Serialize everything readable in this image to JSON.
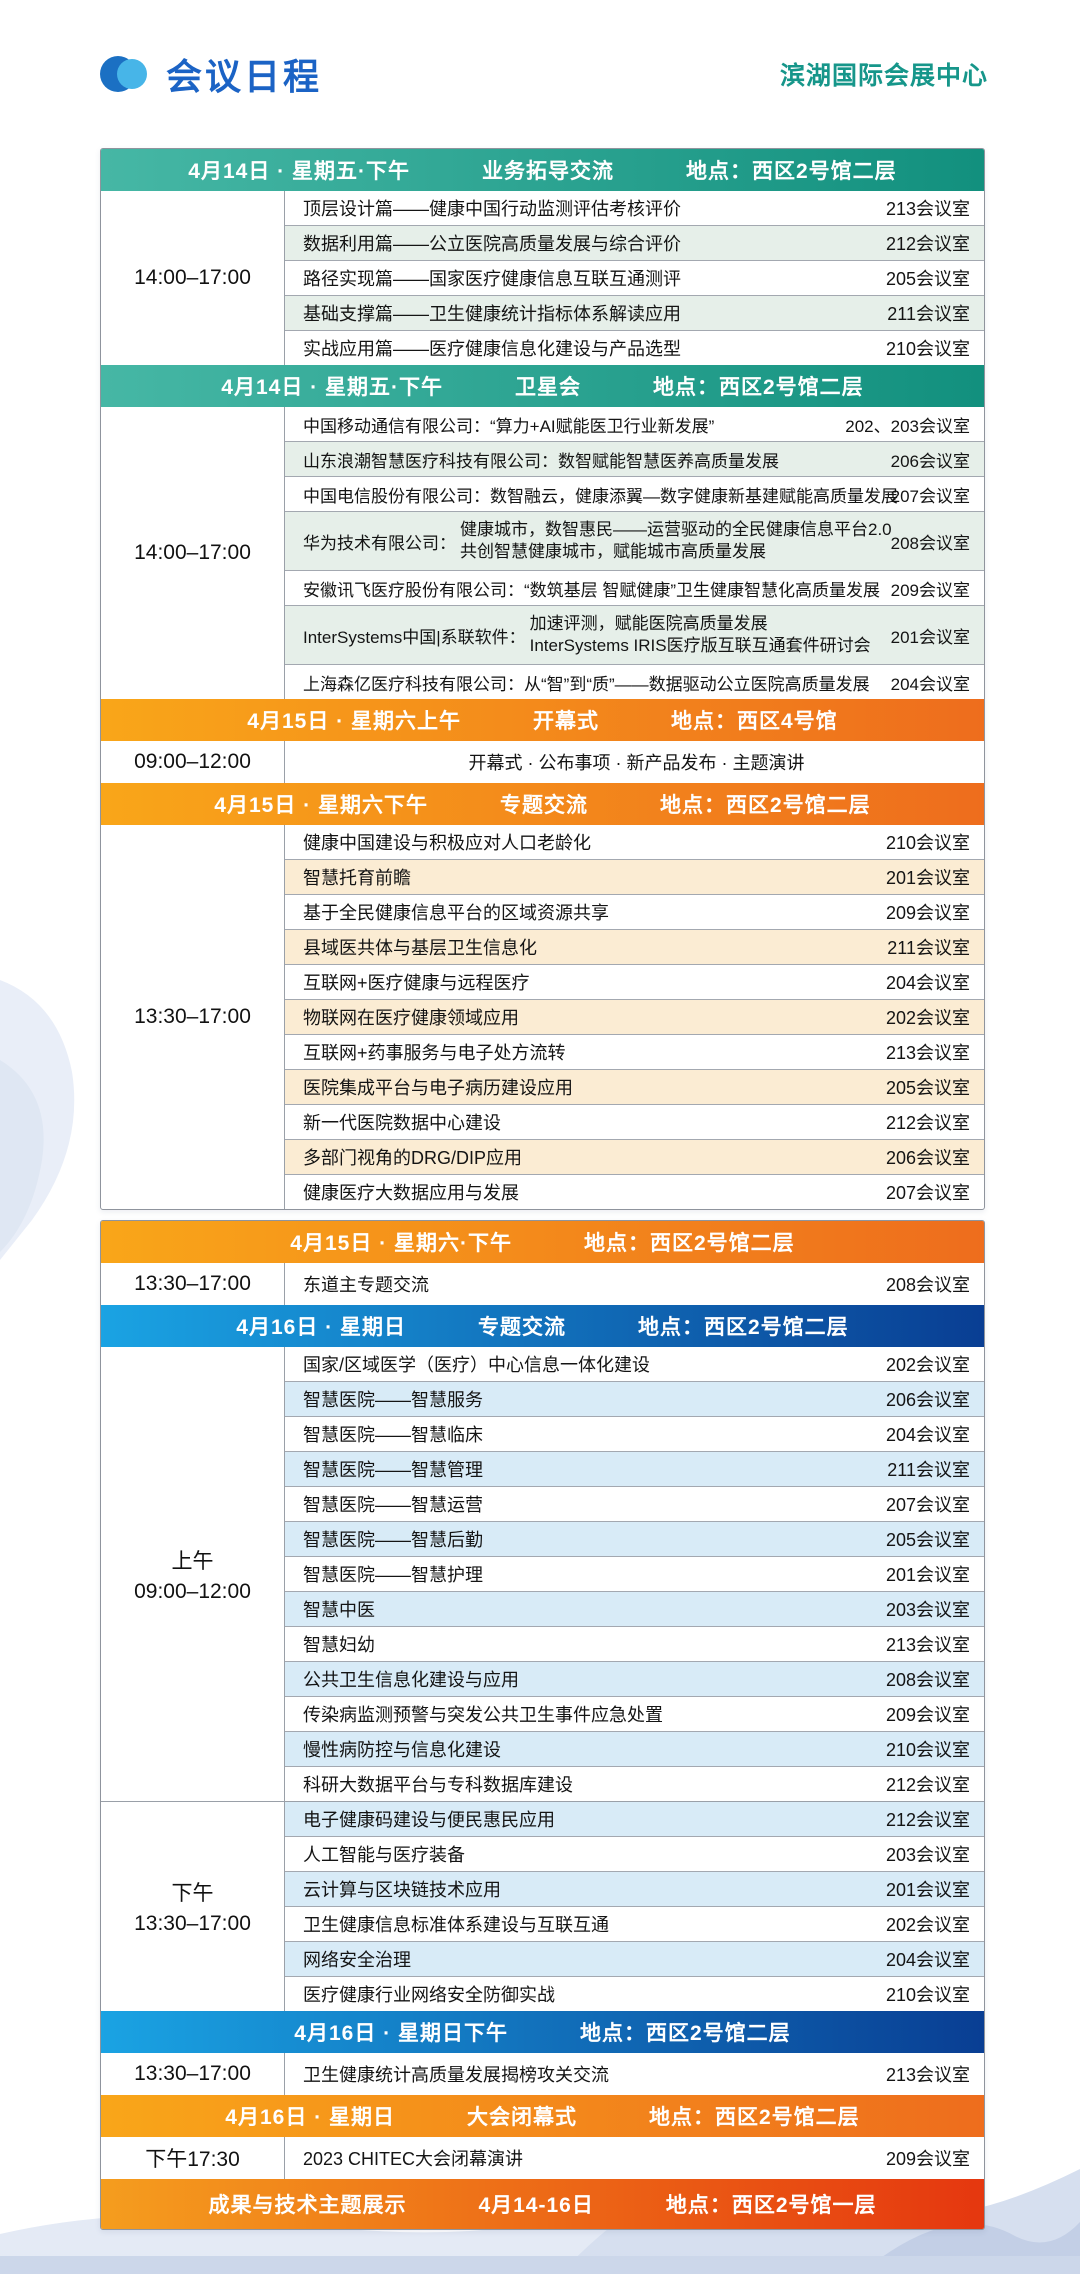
{
  "header": {
    "title": "会议日程",
    "venue": "滨湖国际会展中心",
    "logo_icon": "overlapping-circles-icon"
  },
  "theme": {
    "title_blue": "#1b63c5",
    "venue_teal": "#16968a",
    "teal_gradient": [
      "#46b7a5",
      "#12907e"
    ],
    "orange_gradient": [
      "#f9a619",
      "#ee6d1d"
    ],
    "blue_gradient": [
      "#1aa3e3",
      "#093e93"
    ],
    "red_gradient": [
      "#f59d1e",
      "#e5370f"
    ],
    "row_stripe_green": "#e6efe9",
    "row_stripe_cream": "#fbecd3",
    "row_stripe_blue": "#d8ebf7",
    "wave_light": "#e4eaf5",
    "wave_mid": "#d6dfef",
    "wave_dark": "#c3cfe6"
  },
  "schedule": {
    "blocks": [
      {
        "sections": [
          {
            "color": "teal",
            "stripe": "green",
            "header": {
              "date": "4月14日 · 星期五·下午",
              "topic": "业务拓导交流",
              "location": "地点：西区2号馆二层"
            },
            "groups": [
              {
                "time": [
                  "14:00–17:00"
                ],
                "rows": [
                  {
                    "title": "顶层设计篇——健康中国行动监测评估考核评价",
                    "room": "213会议室"
                  },
                  {
                    "title": "数据利用篇——公立医院高质量发展与综合评价",
                    "room": "212会议室"
                  },
                  {
                    "title": "路径实现篇——国家医疗健康信息互联互通测评",
                    "room": "205会议室"
                  },
                  {
                    "title": "基础支撑篇——卫生健康统计指标体系解读应用",
                    "room": "211会议室"
                  },
                  {
                    "title": "实战应用篇——医疗健康信息化建设与产品选型",
                    "room": "210会议室"
                  }
                ]
              }
            ]
          },
          {
            "color": "teal",
            "stripe": "green",
            "compact": true,
            "header": {
              "date": "4月14日 · 星期五·下午",
              "topic": "卫星会",
              "location": "地点：西区2号馆二层"
            },
            "groups": [
              {
                "time": [
                  "14:00–17:00"
                ],
                "rows": [
                  {
                    "title": "中国移动通信有限公司：“算力+AI赋能医卫行业新发展”",
                    "room": "202、203会议室"
                  },
                  {
                    "title": "山东浪潮智慧医疗科技有限公司：数智赋能智慧医养高质量发展",
                    "room": "206会议室"
                  },
                  {
                    "title": "中国电信股份有限公司：数智融云，健康添翼—数字健康新基建赋能高质量发展",
                    "room": "207会议室"
                  },
                  {
                    "company": "华为技术有限公司：",
                    "lines": [
                      "健康城市，数智惠民——运营驱动的全民健康信息平台2.0",
                      "共创智慧健康城市，赋能城市高质量发展"
                    ],
                    "room": "208会议室"
                  },
                  {
                    "title": "安徽讯飞医疗股份有限公司：“数筑基层 智赋健康”卫生健康智慧化高质量发展",
                    "room": "209会议室"
                  },
                  {
                    "company": "InterSystems中国|系联软件：",
                    "lines": [
                      "加速评测，赋能医院高质量发展",
                      "InterSystems IRIS医疗版互联互通套件研讨会"
                    ],
                    "room": "201会议室"
                  },
                  {
                    "title": "上海森亿医疗科技有限公司：从“智”到“质”——数据驱动公立医院高质量发展",
                    "room": "204会议室"
                  }
                ]
              }
            ]
          },
          {
            "color": "orange",
            "stripe": "",
            "header": {
              "date": "4月15日 · 星期六上午",
              "topic": "开幕式",
              "location": "地点：西区4号馆"
            },
            "groups": [
              {
                "time": [
                  "09:00–12:00"
                ],
                "rows": [
                  {
                    "title": "开幕式 · 公布事项 · 新产品发布 · 主题演讲",
                    "room": "",
                    "center": true
                  }
                ]
              }
            ]
          },
          {
            "color": "orange",
            "stripe": "cream",
            "header": {
              "date": "4月15日 · 星期六下午",
              "topic": "专题交流",
              "location": "地点：西区2号馆二层"
            },
            "groups": [
              {
                "time": [
                  "13:30–17:00"
                ],
                "rows": [
                  {
                    "title": "健康中国建设与积极应对人口老龄化",
                    "room": "210会议室"
                  },
                  {
                    "title": "智慧托育前瞻",
                    "room": "201会议室"
                  },
                  {
                    "title": "基于全民健康信息平台的区域资源共享",
                    "room": "209会议室"
                  },
                  {
                    "title": "县域医共体与基层卫生信息化",
                    "room": "211会议室"
                  },
                  {
                    "title": "互联网+医疗健康与远程医疗",
                    "room": "204会议室"
                  },
                  {
                    "title": "物联网在医疗健康领域应用",
                    "room": "202会议室"
                  },
                  {
                    "title": "互联网+药事服务与电子处方流转",
                    "room": "213会议室"
                  },
                  {
                    "title": "医院集成平台与电子病历建设应用",
                    "room": "205会议室"
                  },
                  {
                    "title": "新一代医院数据中心建设",
                    "room": "212会议室"
                  },
                  {
                    "title": "多部门视角的DRG/DIP应用",
                    "room": "206会议室"
                  },
                  {
                    "title": "健康医疗大数据应用与发展",
                    "room": "207会议室"
                  }
                ]
              }
            ]
          }
        ]
      },
      {
        "sections": [
          {
            "color": "orange",
            "stripe": "",
            "header": {
              "date": "4月15日 · 星期六·下午",
              "topic": "",
              "location": "地点：西区2号馆二层"
            },
            "groups": [
              {
                "time": [
                  "13:30–17:00"
                ],
                "rows": [
                  {
                    "title": "东道主专题交流",
                    "room": "208会议室"
                  }
                ]
              }
            ]
          },
          {
            "color": "blue",
            "stripe": "blue",
            "header": {
              "date": "4月16日 · 星期日",
              "topic": "专题交流",
              "location": "地点：西区2号馆二层"
            },
            "groups": [
              {
                "time": [
                  "上午",
                  "09:00–12:00"
                ],
                "rows": [
                  {
                    "title": "国家/区域医学（医疗）中心信息一体化建设",
                    "room": "202会议室"
                  },
                  {
                    "title": "智慧医院——智慧服务",
                    "room": "206会议室"
                  },
                  {
                    "title": "智慧医院——智慧临床",
                    "room": "204会议室"
                  },
                  {
                    "title": "智慧医院——智慧管理",
                    "room": "211会议室"
                  },
                  {
                    "title": "智慧医院——智慧运营",
                    "room": "207会议室"
                  },
                  {
                    "title": "智慧医院——智慧后勤",
                    "room": "205会议室"
                  },
                  {
                    "title": "智慧医院——智慧护理",
                    "room": "201会议室"
                  },
                  {
                    "title": "智慧中医",
                    "room": "203会议室"
                  },
                  {
                    "title": "智慧妇幼",
                    "room": "213会议室"
                  },
                  {
                    "title": "公共卫生信息化建设与应用",
                    "room": "208会议室"
                  },
                  {
                    "title": "传染病监测预警与突发公共卫生事件应急处置",
                    "room": "209会议室"
                  },
                  {
                    "title": "慢性病防控与信息化建设",
                    "room": "210会议室"
                  },
                  {
                    "title": "科研大数据平台与专科数据库建设",
                    "room": "212会议室"
                  }
                ]
              },
              {
                "time": [
                  "下午",
                  "13:30–17:00"
                ],
                "stripe_offset": 1,
                "rows": [
                  {
                    "title": "电子健康码建设与便民惠民应用",
                    "room": "212会议室"
                  },
                  {
                    "title": "人工智能与医疗装备",
                    "room": "203会议室"
                  },
                  {
                    "title": "云计算与区块链技术应用",
                    "room": "201会议室"
                  },
                  {
                    "title": "卫生健康信息标准体系建设与互联互通",
                    "room": "202会议室"
                  },
                  {
                    "title": "网络安全治理",
                    "room": "204会议室"
                  },
                  {
                    "title": "医疗健康行业网络安全防御实战",
                    "room": "210会议室"
                  }
                ]
              }
            ]
          },
          {
            "color": "blue",
            "stripe": "",
            "header": {
              "date": "4月16日 · 星期日下午",
              "topic": "",
              "location": "地点：西区2号馆二层"
            },
            "groups": [
              {
                "time": [
                  "13:30–17:00"
                ],
                "rows": [
                  {
                    "title": "卫生健康统计高质量发展揭榜攻关交流",
                    "room": "213会议室"
                  }
                ]
              }
            ]
          },
          {
            "color": "orange",
            "stripe": "",
            "header": {
              "date": "4月16日 · 星期日",
              "topic": "大会闭幕式",
              "location": "地点：西区2号馆二层"
            },
            "groups": [
              {
                "time": [
                  "下午17:30"
                ],
                "rows": [
                  {
                    "title": "2023 CHITEC大会闭幕演讲",
                    "room": "209会议室"
                  }
                ]
              }
            ]
          },
          {
            "type": "banner",
            "topic": "成果与技术主题展示",
            "date": "4月14-16日",
            "location": "地点：西区2号馆一层"
          }
        ]
      }
    ]
  }
}
